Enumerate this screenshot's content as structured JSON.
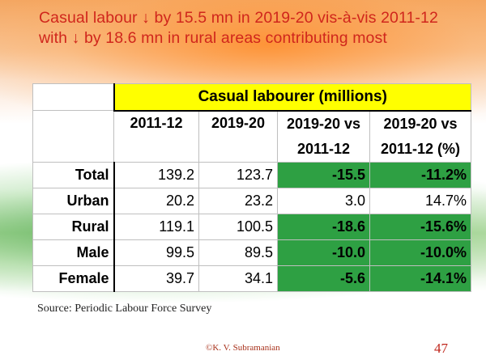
{
  "slide": {
    "title_line1": "Casual labour ↓ by 15.5 mn in 2019-20 vis-à-vis 2011-12",
    "title_line2": "with ↓ by 18.6 mn in rural areas contributing most",
    "source": "Source: Periodic Labour Force Survey",
    "credit": "©K. V. Subramanian",
    "page_number": "47"
  },
  "table": {
    "header": "Casual labourer (millions)",
    "columns": {
      "c1": "2011-12",
      "c2": "2019-20",
      "c3_line1": "2019-20 vs",
      "c3_line2": "2011-12",
      "c4_line1": "2019-20 vs",
      "c4_line2": "2011-12 (%)"
    },
    "rows": [
      {
        "label": "Total",
        "v2011": "139.2",
        "v2019": "123.7",
        "diff": "-15.5",
        "pct": "-11.2%"
      },
      {
        "label": "Urban",
        "v2011": "20.2",
        "v2019": "23.2",
        "diff": "3.0",
        "pct": "14.7%"
      },
      {
        "label": "Rural",
        "v2011": "119.1",
        "v2019": "100.5",
        "diff": "-18.6",
        "pct": "-15.6%"
      },
      {
        "label": "Male",
        "v2011": "99.5",
        "v2019": "89.5",
        "diff": "-10.0",
        "pct": "-10.0%"
      },
      {
        "label": "Female",
        "v2011": "39.7",
        "v2019": "34.1",
        "diff": "-5.6",
        "pct": "-14.1%"
      }
    ]
  },
  "colors": {
    "title": "#d0261c",
    "header_bg": "#ffff00",
    "decline_bg": "#2ea043",
    "page_number": "#c0261c"
  }
}
